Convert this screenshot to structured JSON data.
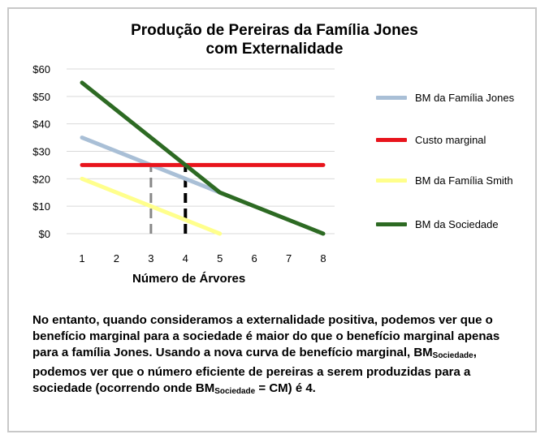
{
  "chart_data": {
    "type": "line",
    "title_lines": [
      "Produção de Pereiras da Família Jones",
      "com Externalidade"
    ],
    "xlabel": "Número de Árvores",
    "ylabel": "",
    "x": [
      1,
      2,
      3,
      4,
      5,
      6,
      7,
      8
    ],
    "xlim": [
      1,
      8
    ],
    "ylim": [
      0,
      60
    ],
    "y_ticks": [
      0,
      10,
      20,
      30,
      40,
      50,
      60
    ],
    "y_tick_labels": [
      "$0",
      "$10",
      "$20",
      "$30",
      "$40",
      "$50",
      "$60"
    ],
    "grid": "horizontal",
    "legend_position": "right",
    "series": [
      {
        "name": "BM da Família Jones",
        "color": "#a9bfd6",
        "points": [
          [
            1,
            35
          ],
          [
            4,
            20
          ],
          [
            5,
            15
          ]
        ]
      },
      {
        "name": "Custo marginal",
        "color": "#e8141c",
        "points": [
          [
            1,
            25
          ],
          [
            8,
            25
          ]
        ]
      },
      {
        "name": "BM da Família Smith",
        "color": "#ffff8c",
        "points": [
          [
            1,
            20
          ],
          [
            5,
            0
          ]
        ]
      },
      {
        "name": "BM da Sociedade",
        "color": "#2d6a23",
        "points": [
          [
            1,
            55
          ],
          [
            5,
            15
          ],
          [
            8,
            0
          ]
        ]
      }
    ],
    "annotations": [
      {
        "type": "vline",
        "x": 3,
        "y0": 0,
        "y1": 25,
        "style": "dashed",
        "color": "#888888"
      },
      {
        "type": "vline",
        "x": 4,
        "y0": 0,
        "y1": 25,
        "style": "dashed",
        "color": "#000000"
      }
    ]
  },
  "note": {
    "part1": "No entanto, quando consideramos a externalidade positiva, podemos ver que o benefício marginal para a sociedade é maior do que o benefício marginal apenas para a família Jones. Usando a nova curva de benefício marginal, BM",
    "sub1": "Sociedade",
    "part2": ", podemos ver que o número eficiente de pereiras a serem produzidas para a sociedade (ocorrendo onde BM",
    "sub2": "Sociedade",
    "part3": " = CM) é 4."
  }
}
